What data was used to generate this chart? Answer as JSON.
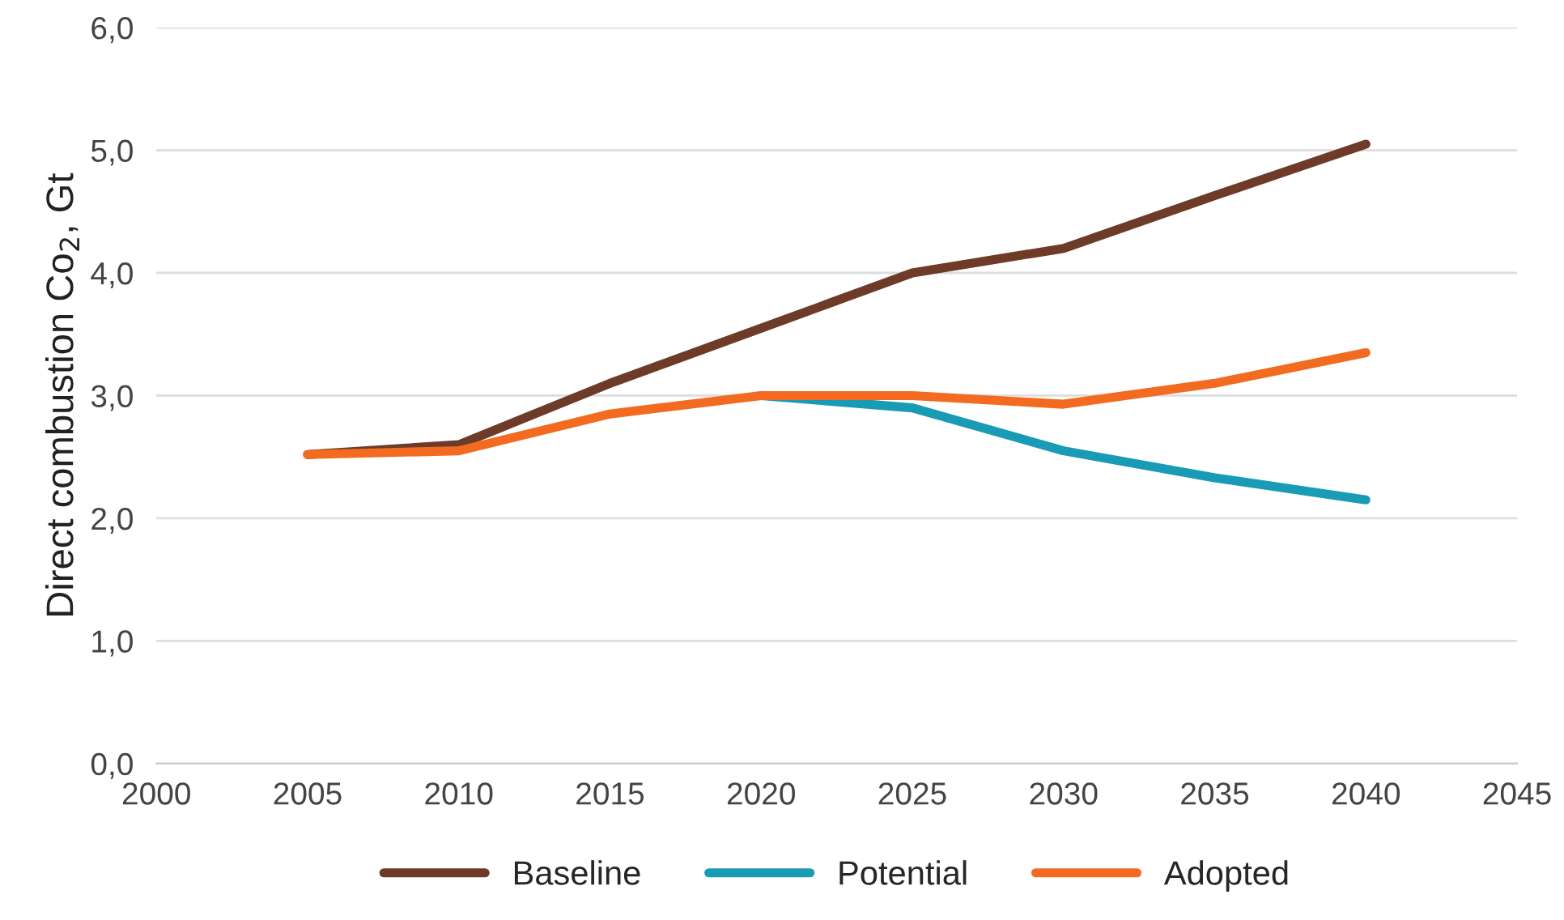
{
  "chart_data": {
    "type": "line",
    "ylabel": "Direct combustion Co$_{2}$, Gt",
    "x": [
      2005,
      2010,
      2015,
      2020,
      2025,
      2030,
      2035,
      2040
    ],
    "series": [
      {
        "name": "Baseline",
        "color": "#6e3b28",
        "values": [
          2.52,
          2.6,
          3.1,
          3.55,
          4.0,
          4.2,
          4.63,
          5.05
        ]
      },
      {
        "name": "Potential",
        "color": "#1a9bb5",
        "values": [
          null,
          null,
          null,
          3.0,
          2.9,
          2.55,
          2.33,
          2.15
        ]
      },
      {
        "name": "Adopted",
        "color": "#f26b21",
        "values": [
          2.52,
          2.55,
          2.85,
          3.0,
          3.0,
          2.93,
          3.1,
          3.35
        ]
      }
    ],
    "xlim": [
      2000,
      2045
    ],
    "xticks": [
      2000,
      2005,
      2010,
      2015,
      2020,
      2025,
      2030,
      2035,
      2040,
      2045
    ],
    "ylim": [
      0,
      6
    ],
    "yticks": [
      {
        "value": 0,
        "label": "0,0"
      },
      {
        "value": 1,
        "label": "1,0"
      },
      {
        "value": 2,
        "label": "2,0"
      },
      {
        "value": 3,
        "label": "3,0"
      },
      {
        "value": 4,
        "label": "4,0"
      },
      {
        "value": 5,
        "label": "5,0"
      },
      {
        "value": 6,
        "label": "6,0"
      }
    ],
    "grid": "y",
    "legend": "bottom",
    "marker": "none",
    "line_style": "solid"
  }
}
